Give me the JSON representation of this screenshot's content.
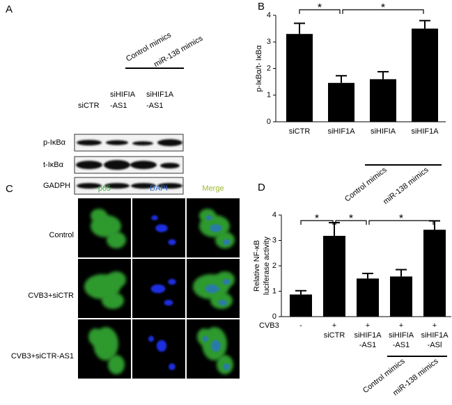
{
  "panels": {
    "a": "A",
    "b": "B",
    "c": "C",
    "d": "D"
  },
  "blot": {
    "lanes": [
      [
        "siCTR"
      ],
      [
        "siHIFIA",
        "-AS1"
      ],
      [
        "siHIF1A",
        "-AS1"
      ]
    ],
    "mimics": [
      "Control mimics",
      "miR-138 mimics"
    ],
    "rows": [
      "p-IκBα",
      "t-IκBα",
      "GADPH"
    ]
  },
  "microscopy": {
    "columns": [
      "p65",
      "DAPI",
      "Merge"
    ],
    "rows": [
      "Control",
      "CVB3+siCTR",
      "CVB3+siCTR-AS1"
    ]
  },
  "chart_data": [
    {
      "type": "bar",
      "ylabel": "p-IκBα/t- IκBα",
      "categories": [
        "siCTR",
        "siHIF1A",
        "siHIFIA",
        "siHIF1A"
      ],
      "values": [
        3.3,
        1.46,
        1.6,
        3.5
      ],
      "errors": [
        0.4,
        0.27,
        0.28,
        0.3
      ],
      "ylim": [
        0,
        4
      ],
      "yticks": [
        0,
        1,
        2,
        3,
        4
      ],
      "color": "#000000",
      "annotations": [
        "*",
        "*"
      ],
      "mimics": [
        "Control mimics",
        "miR-138 mimics"
      ]
    },
    {
      "type": "bar",
      "ylabel": [
        "Relative NF-κB",
        "luciferase activity"
      ],
      "row_label": "CVB3",
      "treatment": [
        "-",
        "+",
        "+",
        "+",
        "+"
      ],
      "categories": [
        null,
        [
          "siCTR"
        ],
        [
          "siHIF1A",
          "-AS1"
        ],
        [
          "siHIFIA",
          "-AS1"
        ],
        [
          "siHIF1A",
          "-ASl"
        ]
      ],
      "values": [
        0.87,
        3.18,
        1.5,
        1.58,
        3.42
      ],
      "errors": [
        0.15,
        0.52,
        0.2,
        0.27,
        0.35
      ],
      "ylim": [
        0,
        4
      ],
      "yticks": [
        0,
        1,
        2,
        3,
        4
      ],
      "color": "#000000",
      "annotations": [
        "*",
        "*",
        "*"
      ],
      "mimics": [
        "Control mimics",
        "miR-138 mimics"
      ]
    }
  ]
}
